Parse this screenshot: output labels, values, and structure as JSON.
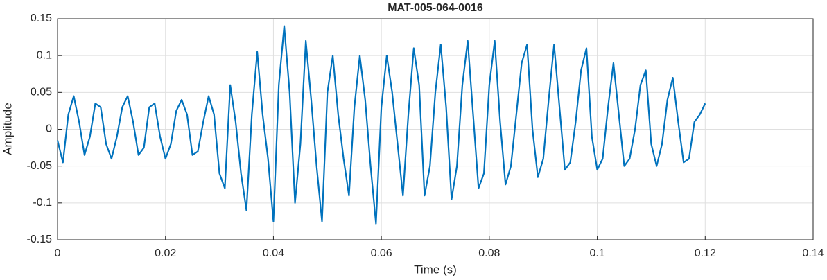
{
  "chart_data": {
    "type": "line",
    "title": "MAT-005-064-0016",
    "xlabel": "Time (s)",
    "ylabel": "Amplitude",
    "color": "#0072bd",
    "grid": true,
    "xlim": [
      0,
      0.14
    ],
    "xticks": [
      0,
      0.02,
      0.04,
      0.06,
      0.08,
      0.1,
      0.12,
      0.14
    ],
    "ylim": [
      -0.15,
      0.15
    ],
    "yticks": [
      -0.15,
      -0.1,
      -0.05,
      0,
      0.05,
      0.1,
      0.15
    ],
    "x": [
      0,
      0.001,
      0.002,
      0.003,
      0.004,
      0.005,
      0.006,
      0.007,
      0.008,
      0.009,
      0.01,
      0.011,
      0.012,
      0.013,
      0.014,
      0.015,
      0.016,
      0.017,
      0.018,
      0.019,
      0.02,
      0.021,
      0.022,
      0.023,
      0.024,
      0.025,
      0.026,
      0.027,
      0.028,
      0.029,
      0.03,
      0.031,
      0.032,
      0.033,
      0.034,
      0.035,
      0.036,
      0.037,
      0.038,
      0.039,
      0.04,
      0.041,
      0.042,
      0.043,
      0.044,
      0.045,
      0.046,
      0.047,
      0.048,
      0.049,
      0.05,
      0.051,
      0.052,
      0.053,
      0.054,
      0.055,
      0.056,
      0.057,
      0.058,
      0.059,
      0.06,
      0.061,
      0.062,
      0.063,
      0.064,
      0.065,
      0.066,
      0.067,
      0.068,
      0.069,
      0.07,
      0.071,
      0.072,
      0.073,
      0.074,
      0.075,
      0.076,
      0.077,
      0.078,
      0.079,
      0.08,
      0.081,
      0.082,
      0.083,
      0.084,
      0.085,
      0.086,
      0.087,
      0.088,
      0.089,
      0.09,
      0.091,
      0.092,
      0.093,
      0.094,
      0.095,
      0.096,
      0.097,
      0.098,
      0.099,
      0.1,
      0.101,
      0.102,
      0.103,
      0.104,
      0.105,
      0.106,
      0.107,
      0.108,
      0.109,
      0.11,
      0.111,
      0.112,
      0.113,
      0.114,
      0.115,
      0.116,
      0.117,
      0.118,
      0.119,
      0.12
    ],
    "values": [
      -0.015,
      -0.045,
      0.02,
      0.045,
      0.01,
      -0.035,
      -0.01,
      0.035,
      0.03,
      -0.02,
      -0.04,
      -0.01,
      0.03,
      0.045,
      0.01,
      -0.035,
      -0.025,
      0.03,
      0.035,
      -0.01,
      -0.04,
      -0.02,
      0.025,
      0.04,
      0.02,
      -0.035,
      -0.03,
      0.01,
      0.045,
      0.02,
      -0.06,
      -0.08,
      0.06,
      0.01,
      -0.06,
      -0.11,
      0.02,
      0.105,
      0.02,
      -0.04,
      -0.125,
      0.06,
      0.14,
      0.05,
      -0.1,
      -0.02,
      0.12,
      0.04,
      -0.05,
      -0.125,
      0.05,
      0.1,
      0.02,
      -0.04,
      -0.09,
      0.03,
      0.1,
      0.04,
      -0.05,
      -0.128,
      0.03,
      0.1,
      0.05,
      -0.02,
      -0.09,
      0.02,
      0.11,
      0.06,
      -0.09,
      -0.05,
      0.05,
      0.115,
      0.03,
      -0.095,
      -0.05,
      0.06,
      0.12,
      0.02,
      -0.08,
      -0.06,
      0.06,
      0.12,
      0.01,
      -0.075,
      -0.05,
      0.02,
      0.09,
      0.115,
      0.0,
      -0.065,
      -0.04,
      0.04,
      0.115,
      0.03,
      -0.055,
      -0.045,
      0.01,
      0.08,
      0.11,
      -0.01,
      -0.055,
      -0.04,
      0.03,
      0.09,
      0.02,
      -0.05,
      -0.04,
      0.0,
      0.06,
      0.08,
      -0.02,
      -0.05,
      -0.02,
      0.04,
      0.07,
      0.01,
      -0.045,
      -0.04,
      0.01,
      0.02,
      0.035
    ]
  }
}
